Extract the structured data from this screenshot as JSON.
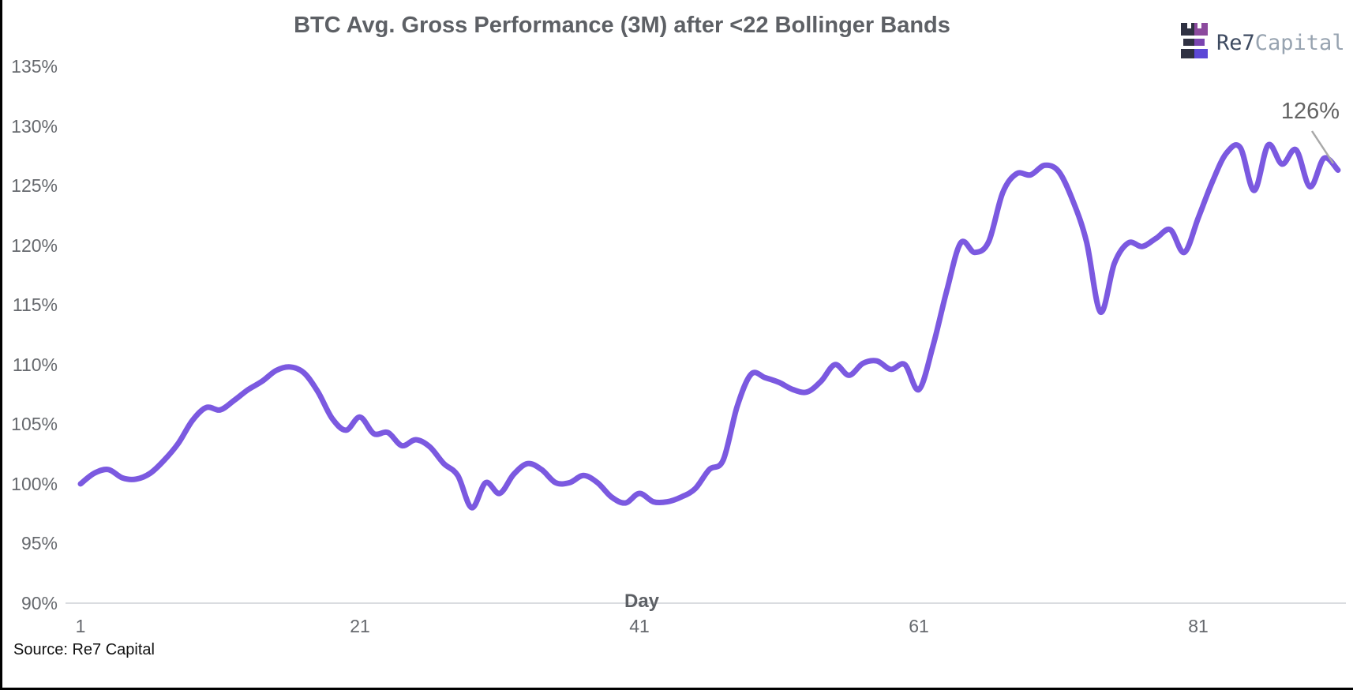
{
  "header": {
    "title": "BTC Avg. Gross Performance (3M) after <22 Bollinger Bands",
    "logo": {
      "name_primary": "Re7",
      "name_secondary": "Capital",
      "icon": "castle-blocks-icon",
      "colors": {
        "dark": "#2f3142",
        "magenta": "#8c4a9e",
        "purple": "#7a44b0",
        "indigo": "#5c48d6",
        "text_primary": "#3d4a60",
        "text_secondary": "#97a3b0"
      }
    }
  },
  "footer": {
    "source": "Source: Re7 Capital"
  },
  "annotation": {
    "label": "126%"
  },
  "colors": {
    "line": "#7b59e0",
    "axis_line": "#dadce0",
    "tick_label": "#66696e",
    "title": "#5d6065",
    "leader_line": "#a8a8a8"
  },
  "chart_data": {
    "type": "line",
    "title": "BTC Avg. Gross Performance (3M) after <22 Bollinger Bands",
    "xlabel": "Day",
    "ylabel": "",
    "series_name": "BTC avg. gross performance",
    "x_unit": "day",
    "x_range": [
      1,
      91
    ],
    "x_step": 1,
    "ylim": [
      90,
      135
    ],
    "grid": false,
    "legend": false,
    "line_style": "smooth",
    "xticks": [
      1,
      21,
      41,
      61,
      81
    ],
    "yticks": [
      90,
      95,
      100,
      105,
      110,
      115,
      120,
      125,
      130,
      135
    ],
    "ytick_suffix": "%",
    "values": [
      100.0,
      100.9,
      101.2,
      100.5,
      100.4,
      100.9,
      102.0,
      103.4,
      105.3,
      106.4,
      106.2,
      107.0,
      107.9,
      108.6,
      109.5,
      109.8,
      109.3,
      107.7,
      105.5,
      104.5,
      105.6,
      104.2,
      104.3,
      103.2,
      103.7,
      103.1,
      101.7,
      100.7,
      98.0,
      100.1,
      99.2,
      100.8,
      101.7,
      101.2,
      100.1,
      100.1,
      100.7,
      100.1,
      98.9,
      98.4,
      99.2,
      98.5,
      98.5,
      98.9,
      99.6,
      101.2,
      102.0,
      106.5,
      109.2,
      108.9,
      108.5,
      107.9,
      107.7,
      108.6,
      110.0,
      109.1,
      110.1,
      110.3,
      109.6,
      110.0,
      107.9,
      111.5,
      116.2,
      120.2,
      119.4,
      120.3,
      124.4,
      126.0,
      125.9,
      126.7,
      126.2,
      123.8,
      120.3,
      114.4,
      118.5,
      120.2,
      119.9,
      120.6,
      121.3,
      119.4,
      122.3,
      125.3,
      127.7,
      128.2,
      124.6,
      128.4,
      126.8,
      128.0,
      124.9,
      127.3,
      126.3
    ],
    "annotation": {
      "day": 91,
      "value": 126.3,
      "label": "126%"
    }
  }
}
